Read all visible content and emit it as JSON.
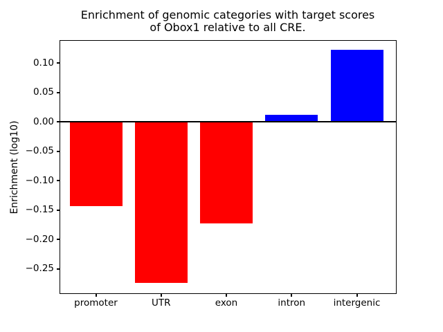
{
  "chart_data": {
    "type": "bar",
    "title_line1": "Enrichment of genomic categories with target scores",
    "title_line2": "of Obox1 relative to all CRE.",
    "ylabel": "Enrichment (log10)",
    "xlabel": "",
    "categories": [
      "promoter",
      "UTR",
      "exon",
      "intron",
      "intergenic"
    ],
    "values": [
      -0.144,
      -0.274,
      -0.173,
      0.012,
      0.122
    ],
    "bar_colors": [
      "#ff0000",
      "#ff0000",
      "#ff0000",
      "#0000ff",
      "#0000ff"
    ],
    "negative_color": "#ff0000",
    "positive_color": "#0000ff",
    "ylim": [
      -0.293,
      0.139
    ],
    "yticks": [
      0.1,
      0.05,
      0.0,
      -0.05,
      -0.1,
      -0.15,
      -0.2,
      -0.25
    ],
    "ytick_labels": [
      "0.10",
      "0.05",
      "0.00",
      "−0.05",
      "−0.10",
      "−0.15",
      "−0.20",
      "−0.25"
    ],
    "grid": false,
    "legend": "none",
    "zero_line": true,
    "background": "#ffffff"
  }
}
